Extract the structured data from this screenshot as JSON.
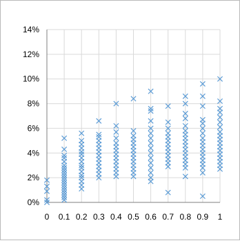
{
  "chart_data": {
    "type": "scatter",
    "marker": "x",
    "marker_color": "#5b9bd5",
    "grid_color": "#d9d9d9",
    "axis_color": "#7f7f7f",
    "grid": true,
    "xlim": [
      0,
      1
    ],
    "ylim": [
      0,
      0.14
    ],
    "x_ticks": [
      0,
      0.1,
      0.2,
      0.3,
      0.4,
      0.5,
      0.6,
      0.7,
      0.8,
      0.9,
      1
    ],
    "x_tick_labels": [
      "0",
      "0.1",
      "0.2",
      "0.3",
      "0.4",
      "0.5",
      "0.6",
      "0.7",
      "0.8",
      "0.9",
      "1"
    ],
    "y_ticks": [
      0,
      0.02,
      0.04,
      0.06,
      0.08,
      0.1,
      0.12,
      0.14
    ],
    "y_tick_labels": [
      "0%",
      "2%",
      "4%",
      "6%",
      "8%",
      "10%",
      "12%",
      "14%"
    ],
    "series": [
      {
        "points": [
          {
            "x": 0,
            "y": 0.0
          },
          {
            "x": 0,
            "y": 0.002
          },
          {
            "x": 0,
            "y": 0.009
          },
          {
            "x": 0,
            "y": 0.013
          },
          {
            "x": 0,
            "y": 0.018
          },
          {
            "x": 0.1,
            "y": 0.002
          },
          {
            "x": 0.1,
            "y": 0.004
          },
          {
            "x": 0.1,
            "y": 0.006
          },
          {
            "x": 0.1,
            "y": 0.008
          },
          {
            "x": 0.1,
            "y": 0.01
          },
          {
            "x": 0.1,
            "y": 0.012
          },
          {
            "x": 0.1,
            "y": 0.014
          },
          {
            "x": 0.1,
            "y": 0.016
          },
          {
            "x": 0.1,
            "y": 0.018
          },
          {
            "x": 0.1,
            "y": 0.02
          },
          {
            "x": 0.1,
            "y": 0.022
          },
          {
            "x": 0.1,
            "y": 0.024
          },
          {
            "x": 0.1,
            "y": 0.026
          },
          {
            "x": 0.1,
            "y": 0.028
          },
          {
            "x": 0.1,
            "y": 0.03
          },
          {
            "x": 0.1,
            "y": 0.033
          },
          {
            "x": 0.1,
            "y": 0.036
          },
          {
            "x": 0.1,
            "y": 0.038
          },
          {
            "x": 0.1,
            "y": 0.043
          },
          {
            "x": 0.1,
            "y": 0.052
          },
          {
            "x": 0.2,
            "y": 0.011
          },
          {
            "x": 0.2,
            "y": 0.014
          },
          {
            "x": 0.2,
            "y": 0.017
          },
          {
            "x": 0.2,
            "y": 0.02
          },
          {
            "x": 0.2,
            "y": 0.022
          },
          {
            "x": 0.2,
            "y": 0.025
          },
          {
            "x": 0.2,
            "y": 0.028
          },
          {
            "x": 0.2,
            "y": 0.03
          },
          {
            "x": 0.2,
            "y": 0.033
          },
          {
            "x": 0.2,
            "y": 0.036
          },
          {
            "x": 0.2,
            "y": 0.039
          },
          {
            "x": 0.2,
            "y": 0.041
          },
          {
            "x": 0.2,
            "y": 0.044
          },
          {
            "x": 0.2,
            "y": 0.047
          },
          {
            "x": 0.2,
            "y": 0.05
          },
          {
            "x": 0.2,
            "y": 0.056
          },
          {
            "x": 0.3,
            "y": 0.02
          },
          {
            "x": 0.3,
            "y": 0.023
          },
          {
            "x": 0.3,
            "y": 0.026
          },
          {
            "x": 0.3,
            "y": 0.029
          },
          {
            "x": 0.3,
            "y": 0.032
          },
          {
            "x": 0.3,
            "y": 0.035
          },
          {
            "x": 0.3,
            "y": 0.038
          },
          {
            "x": 0.3,
            "y": 0.041
          },
          {
            "x": 0.3,
            "y": 0.044
          },
          {
            "x": 0.3,
            "y": 0.047
          },
          {
            "x": 0.3,
            "y": 0.05
          },
          {
            "x": 0.3,
            "y": 0.053
          },
          {
            "x": 0.3,
            "y": 0.055
          },
          {
            "x": 0.3,
            "y": 0.066
          },
          {
            "x": 0.4,
            "y": 0.021
          },
          {
            "x": 0.4,
            "y": 0.024
          },
          {
            "x": 0.4,
            "y": 0.027
          },
          {
            "x": 0.4,
            "y": 0.03
          },
          {
            "x": 0.4,
            "y": 0.033
          },
          {
            "x": 0.4,
            "y": 0.036
          },
          {
            "x": 0.4,
            "y": 0.039
          },
          {
            "x": 0.4,
            "y": 0.042
          },
          {
            "x": 0.4,
            "y": 0.045
          },
          {
            "x": 0.4,
            "y": 0.048
          },
          {
            "x": 0.4,
            "y": 0.052
          },
          {
            "x": 0.4,
            "y": 0.057
          },
          {
            "x": 0.4,
            "y": 0.062
          },
          {
            "x": 0.4,
            "y": 0.08
          },
          {
            "x": 0.5,
            "y": 0.021
          },
          {
            "x": 0.5,
            "y": 0.024
          },
          {
            "x": 0.5,
            "y": 0.027
          },
          {
            "x": 0.5,
            "y": 0.03
          },
          {
            "x": 0.5,
            "y": 0.033
          },
          {
            "x": 0.5,
            "y": 0.036
          },
          {
            "x": 0.5,
            "y": 0.039
          },
          {
            "x": 0.5,
            "y": 0.042
          },
          {
            "x": 0.5,
            "y": 0.045
          },
          {
            "x": 0.5,
            "y": 0.048
          },
          {
            "x": 0.5,
            "y": 0.051
          },
          {
            "x": 0.5,
            "y": 0.054
          },
          {
            "x": 0.5,
            "y": 0.058
          },
          {
            "x": 0.5,
            "y": 0.084
          },
          {
            "x": 0.6,
            "y": 0.017
          },
          {
            "x": 0.6,
            "y": 0.02
          },
          {
            "x": 0.6,
            "y": 0.024
          },
          {
            "x": 0.6,
            "y": 0.028
          },
          {
            "x": 0.6,
            "y": 0.032
          },
          {
            "x": 0.6,
            "y": 0.036
          },
          {
            "x": 0.6,
            "y": 0.04
          },
          {
            "x": 0.6,
            "y": 0.044
          },
          {
            "x": 0.6,
            "y": 0.048
          },
          {
            "x": 0.6,
            "y": 0.052
          },
          {
            "x": 0.6,
            "y": 0.056
          },
          {
            "x": 0.6,
            "y": 0.06
          },
          {
            "x": 0.6,
            "y": 0.066
          },
          {
            "x": 0.6,
            "y": 0.074
          },
          {
            "x": 0.6,
            "y": 0.076
          },
          {
            "x": 0.6,
            "y": 0.09
          },
          {
            "x": 0.7,
            "y": 0.008
          },
          {
            "x": 0.7,
            "y": 0.029
          },
          {
            "x": 0.7,
            "y": 0.032
          },
          {
            "x": 0.7,
            "y": 0.035
          },
          {
            "x": 0.7,
            "y": 0.038
          },
          {
            "x": 0.7,
            "y": 0.041
          },
          {
            "x": 0.7,
            "y": 0.044
          },
          {
            "x": 0.7,
            "y": 0.047
          },
          {
            "x": 0.7,
            "y": 0.05
          },
          {
            "x": 0.7,
            "y": 0.053
          },
          {
            "x": 0.7,
            "y": 0.056
          },
          {
            "x": 0.7,
            "y": 0.06
          },
          {
            "x": 0.7,
            "y": 0.065
          },
          {
            "x": 0.7,
            "y": 0.078
          },
          {
            "x": 0.8,
            "y": 0.021
          },
          {
            "x": 0.8,
            "y": 0.028
          },
          {
            "x": 0.8,
            "y": 0.031
          },
          {
            "x": 0.8,
            "y": 0.034
          },
          {
            "x": 0.8,
            "y": 0.037
          },
          {
            "x": 0.8,
            "y": 0.04
          },
          {
            "x": 0.8,
            "y": 0.043
          },
          {
            "x": 0.8,
            "y": 0.046
          },
          {
            "x": 0.8,
            "y": 0.049
          },
          {
            "x": 0.8,
            "y": 0.052
          },
          {
            "x": 0.8,
            "y": 0.055
          },
          {
            "x": 0.8,
            "y": 0.058
          },
          {
            "x": 0.8,
            "y": 0.062
          },
          {
            "x": 0.8,
            "y": 0.068
          },
          {
            "x": 0.8,
            "y": 0.072
          },
          {
            "x": 0.8,
            "y": 0.08
          },
          {
            "x": 0.8,
            "y": 0.086
          },
          {
            "x": 0.9,
            "y": 0.005
          },
          {
            "x": 0.9,
            "y": 0.024
          },
          {
            "x": 0.9,
            "y": 0.028
          },
          {
            "x": 0.9,
            "y": 0.031
          },
          {
            "x": 0.9,
            "y": 0.034
          },
          {
            "x": 0.9,
            "y": 0.037
          },
          {
            "x": 0.9,
            "y": 0.04
          },
          {
            "x": 0.9,
            "y": 0.043
          },
          {
            "x": 0.9,
            "y": 0.046
          },
          {
            "x": 0.9,
            "y": 0.049
          },
          {
            "x": 0.9,
            "y": 0.052
          },
          {
            "x": 0.9,
            "y": 0.056
          },
          {
            "x": 0.9,
            "y": 0.06
          },
          {
            "x": 0.9,
            "y": 0.064
          },
          {
            "x": 0.9,
            "y": 0.067
          },
          {
            "x": 0.9,
            "y": 0.078
          },
          {
            "x": 0.9,
            "y": 0.086
          },
          {
            "x": 0.9,
            "y": 0.096
          },
          {
            "x": 1,
            "y": 0.027
          },
          {
            "x": 1,
            "y": 0.03
          },
          {
            "x": 1,
            "y": 0.033
          },
          {
            "x": 1,
            "y": 0.036
          },
          {
            "x": 1,
            "y": 0.039
          },
          {
            "x": 1,
            "y": 0.042
          },
          {
            "x": 1,
            "y": 0.045
          },
          {
            "x": 1,
            "y": 0.048
          },
          {
            "x": 1,
            "y": 0.051
          },
          {
            "x": 1,
            "y": 0.054
          },
          {
            "x": 1,
            "y": 0.057
          },
          {
            "x": 1,
            "y": 0.061
          },
          {
            "x": 1,
            "y": 0.065
          },
          {
            "x": 1,
            "y": 0.069
          },
          {
            "x": 1,
            "y": 0.073
          },
          {
            "x": 1,
            "y": 0.076
          },
          {
            "x": 1,
            "y": 0.082
          },
          {
            "x": 1,
            "y": 0.1
          }
        ]
      }
    ]
  }
}
